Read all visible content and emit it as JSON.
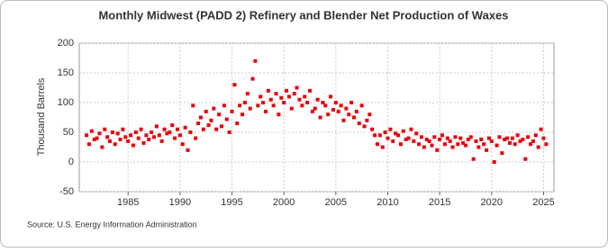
{
  "chart_data": {
    "type": "scatter",
    "title": "Monthly Midwest (PADD 2) Refinery and Blender Net Production of Waxes",
    "y_label": "Thousand Barrels",
    "source": "Source: U.S. Energy Information Administration",
    "color": "#e8000b",
    "grid": true,
    "xlim": [
      1980.3,
      2026
    ],
    "xticks": [
      1985,
      1990,
      1995,
      2000,
      2005,
      2010,
      2015,
      2020,
      2025
    ],
    "ylim": [
      -50,
      200
    ],
    "yticks": [
      -50,
      0,
      50,
      100,
      150,
      200
    ],
    "x": [
      1981,
      1981.25,
      1981.5,
      1981.75,
      1982,
      1982.25,
      1982.5,
      1982.75,
      1983,
      1983.25,
      1983.5,
      1983.75,
      1984,
      1984.25,
      1984.5,
      1984.75,
      1985,
      1985.25,
      1985.5,
      1985.75,
      1986,
      1986.25,
      1986.5,
      1986.75,
      1987,
      1987.25,
      1987.5,
      1987.75,
      1988,
      1988.25,
      1988.5,
      1988.75,
      1989,
      1989.25,
      1989.5,
      1989.75,
      1990,
      1990.25,
      1990.5,
      1990.75,
      1991,
      1991.25,
      1991.5,
      1991.75,
      1992,
      1992.25,
      1992.5,
      1992.75,
      1993,
      1993.25,
      1993.5,
      1993.75,
      1994,
      1994.25,
      1994.5,
      1994.75,
      1995,
      1995.25,
      1995.5,
      1995.75,
      1996,
      1996.25,
      1996.5,
      1996.75,
      1997,
      1997.25,
      1997.5,
      1997.75,
      1998,
      1998.25,
      1998.5,
      1998.75,
      1999,
      1999.25,
      1999.5,
      1999.75,
      2000,
      2000.25,
      2000.5,
      2000.75,
      2001,
      2001.25,
      2001.5,
      2001.75,
      2002,
      2002.25,
      2002.5,
      2002.75,
      2003,
      2003.25,
      2003.5,
      2003.75,
      2004,
      2004.25,
      2004.5,
      2004.75,
      2005,
      2005.25,
      2005.5,
      2005.75,
      2006,
      2006.25,
      2006.5,
      2006.75,
      2007,
      2007.25,
      2007.5,
      2007.75,
      2008,
      2008.25,
      2008.5,
      2008.75,
      2009,
      2009.25,
      2009.5,
      2009.75,
      2010,
      2010.25,
      2010.5,
      2010.75,
      2011,
      2011.25,
      2011.5,
      2011.75,
      2012,
      2012.25,
      2012.5,
      2012.75,
      2013,
      2013.25,
      2013.5,
      2013.75,
      2014,
      2014.25,
      2014.5,
      2014.75,
      2015,
      2015.25,
      2015.5,
      2015.75,
      2016,
      2016.25,
      2016.5,
      2016.75,
      2017,
      2017.25,
      2017.5,
      2017.75,
      2018,
      2018.25,
      2018.5,
      2018.75,
      2019,
      2019.25,
      2019.5,
      2019.75,
      2020,
      2020.25,
      2020.5,
      2020.75,
      2021,
      2021.25,
      2021.5,
      2021.75,
      2022,
      2022.25,
      2022.5,
      2022.75,
      2023,
      2023.25,
      2023.5,
      2023.75,
      2024,
      2024.25,
      2024.5,
      2024.75,
      2025,
      2025.25
    ],
    "values": [
      45,
      30,
      52,
      38,
      40,
      48,
      25,
      55,
      42,
      35,
      50,
      30,
      48,
      38,
      55,
      42,
      35,
      45,
      28,
      50,
      40,
      55,
      32,
      45,
      38,
      50,
      42,
      60,
      45,
      35,
      55,
      48,
      50,
      62,
      40,
      55,
      45,
      30,
      58,
      20,
      50,
      95,
      40,
      65,
      75,
      55,
      85,
      62,
      70,
      90,
      55,
      80,
      60,
      95,
      72,
      50,
      85,
      130,
      65,
      95,
      80,
      100,
      115,
      90,
      140,
      170,
      95,
      110,
      100,
      85,
      120,
      105,
      95,
      115,
      80,
      108,
      100,
      120,
      110,
      90,
      115,
      125,
      105,
      95,
      110,
      100,
      120,
      85,
      90,
      105,
      75,
      100,
      95,
      80,
      110,
      88,
      100,
      85,
      95,
      70,
      90,
      80,
      100,
      75,
      85,
      65,
      95,
      60,
      70,
      80,
      55,
      45,
      30,
      45,
      25,
      50,
      40,
      55,
      35,
      48,
      45,
      30,
      52,
      38,
      40,
      55,
      35,
      48,
      30,
      42,
      25,
      38,
      35,
      28,
      42,
      20,
      38,
      45,
      30,
      40,
      35,
      25,
      42,
      30,
      40,
      32,
      28,
      38,
      42,
      5,
      35,
      25,
      38,
      30,
      20,
      40,
      35,
      0,
      28,
      42,
      15,
      38,
      40,
      32,
      40,
      30,
      45,
      35,
      38,
      5,
      42,
      30,
      35,
      45,
      25,
      55,
      40,
      30
    ]
  }
}
